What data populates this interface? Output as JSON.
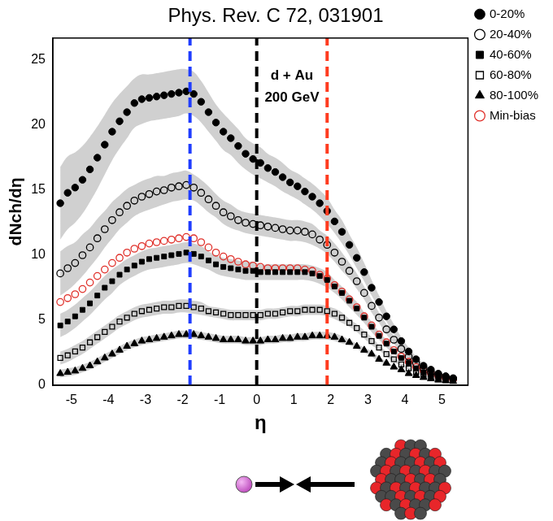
{
  "chart_data": {
    "type": "scatter",
    "title": "Phys. Rev. C 72, 031901",
    "x_label": "η",
    "y_label": "dNch/dη",
    "xlim": [
      -5.5,
      5.7
    ],
    "xticks": [
      -5,
      -4,
      -3,
      -2,
      -1,
      0,
      1,
      2,
      3,
      4,
      5
    ],
    "ylim": [
      0,
      26.7
    ],
    "yticks": [
      0,
      5,
      10,
      15,
      20,
      25
    ],
    "grid": false,
    "legend": "right",
    "x": [
      -5.3,
      -5.1,
      -4.9,
      -4.7,
      -4.5,
      -4.3,
      -4.1,
      -3.9,
      -3.7,
      -3.5,
      -3.3,
      -3.1,
      -2.9,
      -2.7,
      -2.5,
      -2.3,
      -2.1,
      -1.9,
      -1.7,
      -1.5,
      -1.3,
      -1.1,
      -0.9,
      -0.7,
      -0.5,
      -0.3,
      -0.1,
      0.1,
      0.3,
      0.5,
      0.7,
      0.9,
      1.1,
      1.3,
      1.5,
      1.7,
      1.9,
      2.1,
      2.3,
      2.5,
      2.7,
      2.9,
      3.1,
      3.3,
      3.5,
      3.7,
      3.9,
      4.1,
      4.3,
      4.5,
      4.7,
      4.9,
      5.1,
      5.3
    ],
    "series": [
      {
        "name": "0-20%",
        "color": "#000000",
        "marker": "circle",
        "values": [
          14.0,
          14.8,
          15.2,
          15.8,
          16.6,
          17.5,
          18.5,
          19.5,
          20.3,
          21.0,
          21.7,
          22.0,
          22.1,
          22.2,
          22.3,
          22.4,
          22.5,
          22.6,
          22.4,
          21.8,
          21.0,
          20.2,
          19.5,
          19.0,
          18.4,
          17.8,
          17.4,
          17.1,
          16.7,
          16.4,
          16.0,
          15.6,
          15.3,
          14.9,
          14.5,
          14.0,
          13.4,
          12.6,
          11.8,
          10.8,
          9.8,
          8.7,
          7.5,
          6.4,
          5.3,
          4.3,
          3.4,
          2.6,
          2.0,
          1.5,
          1.2,
          0.9,
          0.7,
          0.55
        ],
        "errors": [
          2.8,
          2.8,
          2.7,
          2.6,
          2.5,
          2.4,
          2.3,
          2.2,
          2.1,
          2.0,
          1.9,
          1.9,
          1.8,
          1.8,
          1.8,
          1.8,
          1.8,
          1.7,
          1.7,
          1.6,
          1.5,
          1.4,
          1.4,
          1.3,
          1.3,
          1.2,
          1.2,
          1.2,
          1.1,
          1.1,
          1.1,
          1.0,
          1.0,
          1.0,
          1.0,
          1.0,
          1.0,
          0.9,
          0.9,
          0.8,
          0.8,
          0.7,
          0.6,
          0.5,
          0.4,
          0.4,
          0.3,
          0.3,
          0.2,
          0.2,
          0.1,
          0.1,
          0.1,
          0.1
        ]
      },
      {
        "name": "20-40%",
        "color": "#000000",
        "marker": "circle_open",
        "values": [
          8.6,
          9.0,
          9.4,
          10.0,
          10.6,
          11.3,
          12.0,
          12.7,
          13.3,
          13.8,
          14.2,
          14.5,
          14.7,
          14.9,
          15.0,
          15.2,
          15.3,
          15.4,
          15.2,
          14.8,
          14.3,
          13.8,
          13.3,
          13.0,
          12.7,
          12.5,
          12.4,
          12.3,
          12.2,
          12.1,
          12.0,
          11.9,
          11.9,
          11.8,
          11.6,
          11.2,
          10.8,
          10.2,
          9.5,
          8.8,
          8.0,
          7.1,
          6.1,
          5.2,
          4.3,
          3.5,
          2.8,
          2.2,
          1.7,
          1.3,
          1.0,
          0.8,
          0.6,
          0.5
        ],
        "errors": [
          1.7,
          1.7,
          1.6,
          1.6,
          1.5,
          1.5,
          1.4,
          1.4,
          1.3,
          1.3,
          1.2,
          1.2,
          1.2,
          1.2,
          1.1,
          1.1,
          1.1,
          1.1,
          1.0,
          1.0,
          1.0,
          0.9,
          0.9,
          0.9,
          0.8,
          0.8,
          0.8,
          0.8,
          0.8,
          0.8,
          0.8,
          0.8,
          0.8,
          0.8,
          0.8,
          0.7,
          0.7,
          0.7,
          0.7,
          0.6,
          0.6,
          0.5,
          0.5,
          0.4,
          0.4,
          0.3,
          0.3,
          0.2,
          0.2,
          0.2,
          0.1,
          0.1,
          0.1,
          0.1
        ]
      },
      {
        "name": "40-60%",
        "color": "#000000",
        "marker": "square",
        "values": [
          4.6,
          4.9,
          5.3,
          5.8,
          6.3,
          6.9,
          7.5,
          8.0,
          8.5,
          8.9,
          9.2,
          9.5,
          9.7,
          9.8,
          9.9,
          10.0,
          10.1,
          10.2,
          10.1,
          9.9,
          9.6,
          9.3,
          9.1,
          9.0,
          8.9,
          8.8,
          8.8,
          8.7,
          8.7,
          8.7,
          8.7,
          8.7,
          8.7,
          8.7,
          8.6,
          8.4,
          8.1,
          7.6,
          7.1,
          6.5,
          5.9,
          5.2,
          4.5,
          3.8,
          3.2,
          2.6,
          2.1,
          1.7,
          1.3,
          1.0,
          0.8,
          0.65,
          0.5,
          0.4
        ],
        "errors": [
          0.9,
          0.9,
          0.9,
          0.9,
          0.9,
          0.9,
          0.9,
          0.9,
          0.8,
          0.8,
          0.8,
          0.8,
          0.8,
          0.8,
          0.8,
          0.8,
          0.8,
          0.8,
          0.8,
          0.8,
          0.7,
          0.7,
          0.7,
          0.7,
          0.7,
          0.7,
          0.7,
          0.6,
          0.6,
          0.6,
          0.6,
          0.6,
          0.6,
          0.6,
          0.6,
          0.6,
          0.6,
          0.5,
          0.5,
          0.5,
          0.5,
          0.4,
          0.4,
          0.3,
          0.3,
          0.2,
          0.2,
          0.2,
          0.1,
          0.1,
          0.1,
          0.1,
          0.1,
          0.1
        ]
      },
      {
        "name": "60-80%",
        "color": "#000000",
        "marker": "square_open",
        "values": [
          2.1,
          2.3,
          2.6,
          2.9,
          3.3,
          3.7,
          4.1,
          4.5,
          4.9,
          5.2,
          5.5,
          5.7,
          5.8,
          5.9,
          6.0,
          6.0,
          6.1,
          6.1,
          6.0,
          5.9,
          5.7,
          5.6,
          5.5,
          5.4,
          5.4,
          5.4,
          5.4,
          5.4,
          5.5,
          5.5,
          5.6,
          5.7,
          5.7,
          5.8,
          5.8,
          5.8,
          5.7,
          5.5,
          5.2,
          4.8,
          4.4,
          3.9,
          3.4,
          2.9,
          2.4,
          2.0,
          1.6,
          1.3,
          1.0,
          0.8,
          0.65,
          0.5,
          0.4,
          0.35
        ],
        "errors": [
          0.5,
          0.5,
          0.5,
          0.5,
          0.5,
          0.5,
          0.5,
          0.5,
          0.5,
          0.5,
          0.5,
          0.5,
          0.5,
          0.5,
          0.5,
          0.5,
          0.5,
          0.5,
          0.5,
          0.5,
          0.4,
          0.4,
          0.4,
          0.4,
          0.4,
          0.4,
          0.4,
          0.4,
          0.4,
          0.4,
          0.4,
          0.4,
          0.4,
          0.4,
          0.4,
          0.4,
          0.4,
          0.4,
          0.4,
          0.3,
          0.3,
          0.3,
          0.3,
          0.2,
          0.2,
          0.2,
          0.1,
          0.1,
          0.1,
          0.1,
          0.1,
          0.1,
          0.1,
          0.1
        ]
      },
      {
        "name": "80-100%",
        "color": "#000000",
        "marker": "triangle",
        "values": [
          0.9,
          1.0,
          1.1,
          1.3,
          1.5,
          1.8,
          2.1,
          2.4,
          2.7,
          3.0,
          3.2,
          3.4,
          3.5,
          3.6,
          3.7,
          3.8,
          3.9,
          3.9,
          3.9,
          3.8,
          3.7,
          3.6,
          3.5,
          3.5,
          3.5,
          3.4,
          3.4,
          3.4,
          3.5,
          3.5,
          3.6,
          3.6,
          3.7,
          3.7,
          3.8,
          3.8,
          3.8,
          3.7,
          3.5,
          3.3,
          3.0,
          2.7,
          2.4,
          2.0,
          1.7,
          1.4,
          1.2,
          0.9,
          0.75,
          0.6,
          0.5,
          0.4,
          0.35,
          0.3
        ],
        "errors": [
          0.3,
          0.3,
          0.3,
          0.3,
          0.3,
          0.3,
          0.3,
          0.3,
          0.3,
          0.3,
          0.3,
          0.3,
          0.3,
          0.3,
          0.3,
          0.3,
          0.3,
          0.3,
          0.3,
          0.3,
          0.3,
          0.3,
          0.3,
          0.3,
          0.3,
          0.3,
          0.3,
          0.3,
          0.3,
          0.3,
          0.3,
          0.3,
          0.3,
          0.3,
          0.3,
          0.3,
          0.3,
          0.3,
          0.3,
          0.2,
          0.2,
          0.2,
          0.2,
          0.2,
          0.1,
          0.1,
          0.1,
          0.1,
          0.1,
          0.1,
          0.1,
          0.1,
          0.1,
          0.1
        ]
      },
      {
        "name": "Min-bias",
        "color": "#e0302a",
        "marker": "circle_open",
        "values": [
          6.4,
          6.7,
          7.0,
          7.4,
          7.9,
          8.4,
          8.9,
          9.4,
          9.8,
          10.2,
          10.5,
          10.7,
          10.9,
          11.0,
          11.1,
          11.2,
          11.3,
          11.4,
          11.3,
          11.0,
          10.6,
          10.2,
          9.9,
          9.7,
          9.5,
          9.3,
          9.2,
          9.1,
          9.0,
          9.0,
          9.0,
          9.0,
          9.0,
          8.9,
          8.8,
          8.5,
          8.2,
          7.7,
          7.2,
          6.6,
          6.0,
          5.3,
          4.6,
          3.9,
          3.3,
          2.7,
          2.2,
          1.8,
          1.4,
          1.1,
          0.9,
          0.7,
          0.55,
          0.45
        ]
      }
    ],
    "annotations": [
      {
        "text": "d + Au",
        "x": 0.95,
        "y": 23.8
      },
      {
        "text": "200 GeV",
        "x": 0.95,
        "y": 22.1
      }
    ],
    "vlines": [
      {
        "x": -1.8,
        "color": "#1f3cff",
        "line_style": "dashed"
      },
      {
        "x": 0,
        "color": "#000000",
        "line_style": "dashed"
      },
      {
        "x": 1.9,
        "color": "#ff3b1f",
        "line_style": "dashed"
      }
    ]
  }
}
